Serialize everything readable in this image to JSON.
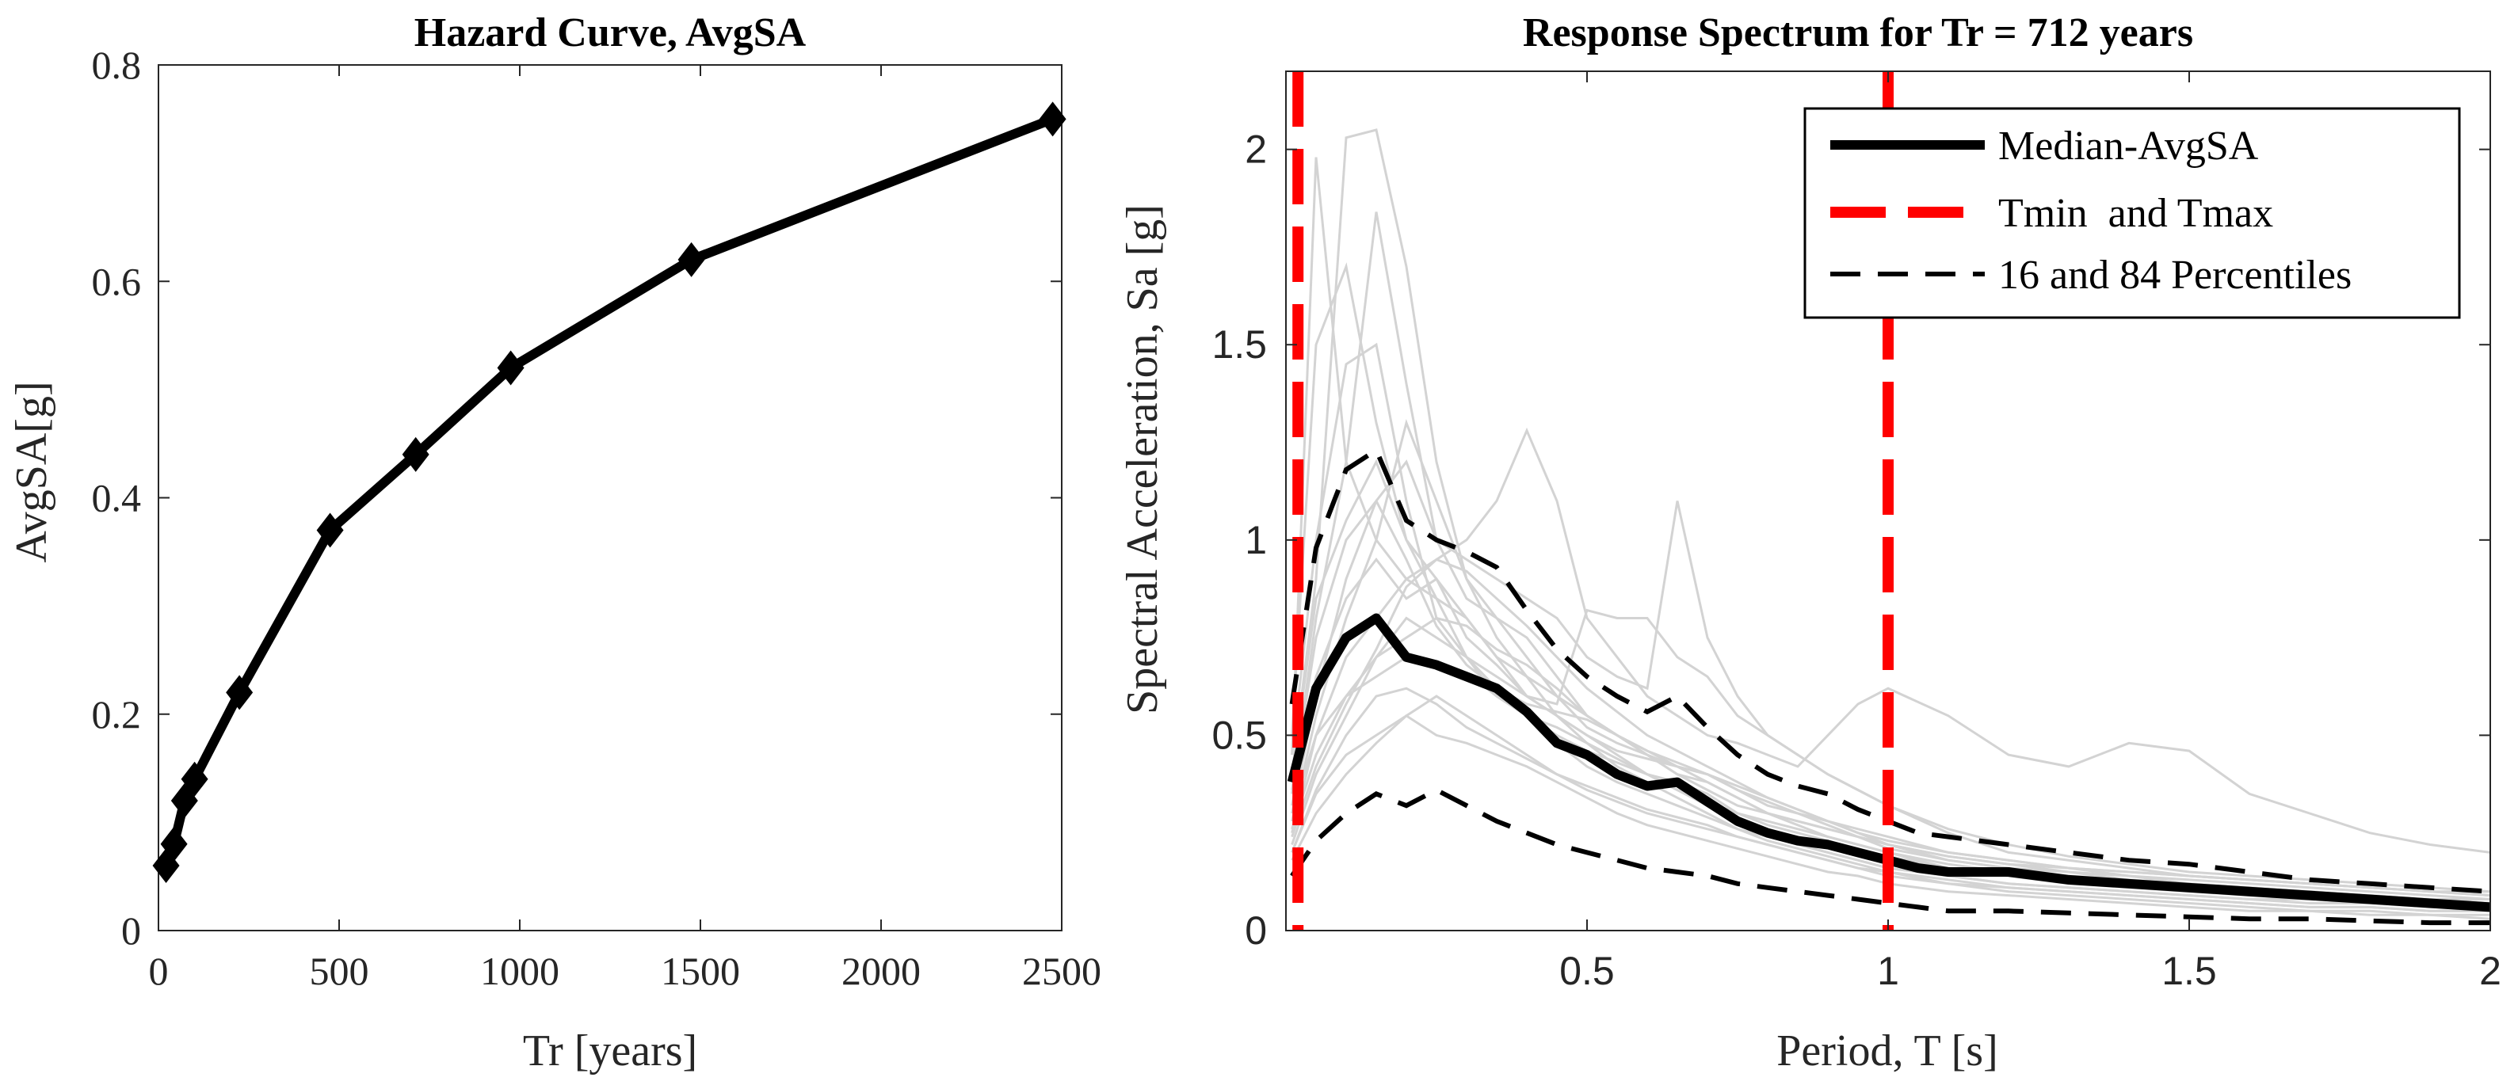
{
  "chart_data": [
    {
      "type": "line",
      "title": "Hazard Curve, AvgSA",
      "xlabel": "Tr [years]",
      "ylabel": "AvgSA[g]",
      "xlim": [
        0,
        2500
      ],
      "ylim": [
        0,
        0.8
      ],
      "xticks": [
        0,
        500,
        1000,
        1500,
        2000,
        2500
      ],
      "yticks": [
        0,
        0.2,
        0.4,
        0.6,
        0.8
      ],
      "xtick_labels": [
        "0",
        "500",
        "1000",
        "1500",
        "2000",
        "2500"
      ],
      "ytick_labels": [
        "0",
        "0.2",
        "0.4",
        "0.6",
        "0.8"
      ],
      "marker": "diamond",
      "color": "#000000",
      "series": [
        {
          "name": "Hazard curve",
          "x": [
            21,
            43,
            72,
            100,
            224,
            475,
            712,
            975,
            1475,
            2475
          ],
          "y": [
            0.06,
            0.08,
            0.12,
            0.14,
            0.22,
            0.37,
            0.44,
            0.52,
            0.62,
            0.75
          ]
        }
      ]
    },
    {
      "type": "line",
      "title": "Response Spectrum for Tr = 712 years",
      "xlabel": "Period, T [s]",
      "ylabel": "Spectral Acceleration, Sa [g]",
      "xlim": [
        0,
        2
      ],
      "ylim": [
        0,
        2.2
      ],
      "xticks": [
        0.5,
        1,
        1.5,
        2
      ],
      "yticks": [
        0,
        0.5,
        1,
        1.5,
        2
      ],
      "xtick_labels": [
        "0.5",
        "1",
        "1.5",
        "2"
      ],
      "ytick_labels": [
        "0",
        "0.5",
        "1",
        "1.5",
        "2"
      ],
      "legend_position": "top-right",
      "legend": [
        "Median-AvgSA",
        "Tmin  and Tmax",
        "16 and 84 Percentiles"
      ],
      "colors": {
        "median": "#000000",
        "limits": "#ff0000",
        "percentiles": "#000000",
        "records": "#d3d3d3"
      },
      "tmin_tmax": [
        0.02,
        1.0
      ],
      "median": {
        "x": [
          0.01,
          0.05,
          0.1,
          0.15,
          0.2,
          0.25,
          0.3,
          0.35,
          0.4,
          0.45,
          0.5,
          0.55,
          0.6,
          0.65,
          0.7,
          0.75,
          0.8,
          0.85,
          0.9,
          0.95,
          1.0,
          1.05,
          1.1,
          1.2,
          1.3,
          1.4,
          1.5,
          1.6,
          1.7,
          1.8,
          1.9,
          2.0
        ],
        "y": [
          0.38,
          0.62,
          0.75,
          0.8,
          0.7,
          0.68,
          0.65,
          0.62,
          0.56,
          0.48,
          0.45,
          0.4,
          0.37,
          0.38,
          0.33,
          0.28,
          0.25,
          0.23,
          0.22,
          0.2,
          0.18,
          0.16,
          0.15,
          0.15,
          0.13,
          0.12,
          0.11,
          0.1,
          0.09,
          0.08,
          0.07,
          0.06
        ]
      },
      "p84": {
        "x": [
          0.01,
          0.05,
          0.1,
          0.15,
          0.2,
          0.25,
          0.3,
          0.35,
          0.4,
          0.45,
          0.5,
          0.55,
          0.6,
          0.65,
          0.7,
          0.75,
          0.8,
          0.85,
          0.9,
          0.95,
          1.0,
          1.05,
          1.1,
          1.2,
          1.3,
          1.4,
          1.5,
          1.6,
          1.7,
          1.8,
          1.9,
          2.0
        ],
        "y": [
          0.58,
          0.98,
          1.18,
          1.23,
          1.05,
          1.0,
          0.97,
          0.93,
          0.82,
          0.72,
          0.65,
          0.6,
          0.56,
          0.6,
          0.52,
          0.45,
          0.4,
          0.37,
          0.35,
          0.31,
          0.28,
          0.25,
          0.24,
          0.22,
          0.2,
          0.18,
          0.17,
          0.15,
          0.13,
          0.12,
          0.11,
          0.1
        ]
      },
      "p16": {
        "x": [
          0.01,
          0.05,
          0.1,
          0.15,
          0.2,
          0.25,
          0.3,
          0.35,
          0.4,
          0.45,
          0.5,
          0.55,
          0.6,
          0.65,
          0.7,
          0.75,
          0.8,
          0.85,
          0.9,
          0.95,
          1.0,
          1.05,
          1.1,
          1.2,
          1.3,
          1.4,
          1.5,
          1.6,
          1.7,
          1.8,
          1.9,
          2.0
        ],
        "y": [
          0.14,
          0.23,
          0.3,
          0.35,
          0.32,
          0.36,
          0.32,
          0.28,
          0.25,
          0.22,
          0.2,
          0.18,
          0.16,
          0.15,
          0.14,
          0.12,
          0.11,
          0.1,
          0.09,
          0.08,
          0.07,
          0.06,
          0.05,
          0.05,
          0.045,
          0.04,
          0.035,
          0.03,
          0.03,
          0.025,
          0.02,
          0.02
        ]
      },
      "record_periods": [
        0.01,
        0.05,
        0.1,
        0.15,
        0.2,
        0.25,
        0.3,
        0.35,
        0.4,
        0.45,
        0.5,
        0.55,
        0.6,
        0.65,
        0.7,
        0.75,
        0.8,
        0.85,
        0.9,
        0.95,
        1.0,
        1.1,
        1.2,
        1.3,
        1.4,
        1.5,
        1.6,
        1.7,
        1.8,
        1.9,
        2.0
      ],
      "records": [
        [
          0.45,
          1.98,
          1.2,
          1.0,
          0.9,
          0.85,
          0.8,
          0.7,
          0.6,
          0.55,
          0.5,
          0.45,
          0.4,
          0.38,
          0.35,
          0.3,
          0.28,
          0.26,
          0.24,
          0.22,
          0.2,
          0.17,
          0.15,
          0.13,
          0.12,
          0.11,
          0.1,
          0.09,
          0.08,
          0.07,
          0.06
        ],
        [
          0.4,
          0.9,
          2.03,
          2.05,
          1.7,
          1.2,
          0.9,
          0.8,
          0.7,
          0.6,
          0.55,
          0.5,
          0.45,
          0.42,
          0.4,
          0.36,
          0.32,
          0.3,
          0.28,
          0.25,
          0.23,
          0.2,
          0.18,
          0.16,
          0.14,
          0.13,
          0.12,
          0.11,
          0.1,
          0.09,
          0.08
        ],
        [
          0.35,
          0.8,
          1.2,
          1.84,
          1.4,
          1.0,
          0.85,
          0.8,
          0.75,
          0.65,
          0.55,
          0.5,
          0.45,
          0.4,
          0.36,
          0.32,
          0.3,
          0.28,
          0.26,
          0.24,
          0.22,
          0.19,
          0.17,
          0.15,
          0.14,
          0.12,
          0.11,
          0.1,
          0.09,
          0.08,
          0.07
        ],
        [
          0.5,
          1.5,
          1.7,
          1.3,
          1.0,
          0.9,
          0.8,
          0.7,
          0.65,
          0.6,
          0.52,
          0.48,
          0.45,
          0.4,
          0.38,
          0.34,
          0.3,
          0.28,
          0.26,
          0.24,
          0.22,
          0.18,
          0.16,
          0.15,
          0.13,
          0.12,
          0.11,
          0.1,
          0.09,
          0.08,
          0.07
        ],
        [
          0.3,
          0.6,
          0.9,
          1.1,
          1.2,
          1.0,
          0.95,
          0.9,
          0.85,
          0.8,
          0.7,
          0.65,
          0.62,
          1.1,
          0.75,
          0.6,
          0.5,
          0.45,
          0.4,
          0.36,
          0.32,
          0.25,
          0.2,
          0.18,
          0.16,
          0.14,
          0.13,
          0.12,
          0.11,
          0.1,
          0.09
        ],
        [
          0.25,
          0.5,
          0.7,
          0.8,
          0.9,
          0.95,
          1.0,
          1.1,
          1.28,
          1.1,
          0.8,
          0.7,
          0.6,
          0.55,
          0.5,
          0.48,
          0.45,
          0.42,
          0.5,
          0.58,
          0.62,
          0.55,
          0.45,
          0.42,
          0.48,
          0.46,
          0.35,
          0.3,
          0.25,
          0.22,
          0.2
        ],
        [
          0.3,
          0.5,
          0.6,
          0.7,
          0.8,
          0.75,
          0.7,
          0.65,
          0.6,
          0.58,
          0.82,
          0.8,
          0.8,
          0.7,
          0.65,
          0.55,
          0.5,
          0.45,
          0.4,
          0.36,
          0.32,
          0.26,
          0.22,
          0.19,
          0.17,
          0.15,
          0.14,
          0.13,
          0.12,
          0.11,
          0.1
        ],
        [
          0.2,
          0.35,
          0.45,
          0.5,
          0.55,
          0.6,
          0.55,
          0.5,
          0.45,
          0.4,
          0.36,
          0.33,
          0.3,
          0.28,
          0.26,
          0.24,
          0.22,
          0.2,
          0.18,
          0.16,
          0.14,
          0.12,
          0.1,
          0.09,
          0.08,
          0.07,
          0.06,
          0.05,
          0.05,
          0.04,
          0.04
        ],
        [
          0.28,
          0.55,
          0.8,
          1.0,
          1.3,
          1.1,
          0.9,
          0.75,
          0.65,
          0.55,
          0.48,
          0.42,
          0.38,
          0.34,
          0.3,
          0.26,
          0.23,
          0.21,
          0.19,
          0.17,
          0.15,
          0.13,
          0.11,
          0.1,
          0.09,
          0.08,
          0.07,
          0.06,
          0.06,
          0.05,
          0.05
        ],
        [
          0.22,
          0.4,
          0.55,
          0.7,
          0.75,
          0.8,
          0.78,
          0.72,
          0.68,
          0.62,
          0.55,
          0.5,
          0.46,
          0.42,
          0.38,
          0.34,
          0.3,
          0.27,
          0.24,
          0.22,
          0.2,
          0.16,
          0.14,
          0.12,
          0.11,
          0.1,
          0.09,
          0.08,
          0.07,
          0.07,
          0.06
        ],
        [
          0.18,
          0.3,
          0.4,
          0.48,
          0.55,
          0.5,
          0.48,
          0.45,
          0.42,
          0.38,
          0.34,
          0.3,
          0.27,
          0.25,
          0.23,
          0.21,
          0.19,
          0.17,
          0.15,
          0.14,
          0.12,
          0.1,
          0.09,
          0.08,
          0.07,
          0.06,
          0.05,
          0.05,
          0.04,
          0.04,
          0.03
        ],
        [
          0.4,
          0.85,
          1.05,
          1.2,
          1.0,
          0.85,
          0.7,
          0.6,
          0.55,
          0.5,
          0.46,
          0.43,
          0.4,
          0.36,
          0.33,
          0.3,
          0.27,
          0.25,
          0.23,
          0.21,
          0.19,
          0.16,
          0.14,
          0.13,
          0.12,
          0.11,
          0.1,
          0.09,
          0.08,
          0.08,
          0.07
        ],
        [
          0.32,
          0.65,
          0.85,
          0.95,
          0.85,
          0.9,
          0.75,
          0.68,
          0.6,
          0.55,
          0.5,
          0.46,
          0.44,
          0.42,
          0.4,
          0.37,
          0.34,
          0.31,
          0.28,
          0.25,
          0.22,
          0.19,
          0.17,
          0.16,
          0.15,
          0.14,
          0.13,
          0.12,
          0.11,
          0.1,
          0.09
        ],
        [
          0.26,
          0.45,
          0.6,
          0.65,
          0.7,
          0.68,
          0.66,
          0.6,
          0.55,
          0.52,
          0.48,
          0.44,
          0.4,
          0.36,
          0.32,
          0.28,
          0.25,
          0.22,
          0.2,
          0.18,
          0.16,
          0.14,
          0.12,
          0.11,
          0.1,
          0.09,
          0.08,
          0.07,
          0.07,
          0.06,
          0.06
        ],
        [
          0.45,
          1.0,
          1.45,
          1.5,
          1.1,
          0.8,
          0.7,
          0.62,
          0.55,
          0.48,
          0.42,
          0.38,
          0.35,
          0.32,
          0.29,
          0.26,
          0.24,
          0.22,
          0.2,
          0.18,
          0.16,
          0.14,
          0.12,
          0.11,
          0.1,
          0.09,
          0.08,
          0.08,
          0.07,
          0.06,
          0.06
        ],
        [
          0.24,
          0.42,
          0.58,
          0.72,
          0.88,
          0.95,
          0.92,
          0.85,
          0.78,
          0.7,
          0.62,
          0.56,
          0.5,
          0.46,
          0.42,
          0.38,
          0.34,
          0.31,
          0.28,
          0.26,
          0.24,
          0.2,
          0.18,
          0.16,
          0.15,
          0.14,
          0.13,
          0.12,
          0.11,
          0.1,
          0.1
        ],
        [
          0.2,
          0.36,
          0.5,
          0.6,
          0.62,
          0.58,
          0.52,
          0.48,
          0.44,
          0.4,
          0.37,
          0.34,
          0.31,
          0.29,
          0.27,
          0.24,
          0.22,
          0.2,
          0.18,
          0.16,
          0.15,
          0.12,
          0.11,
          0.1,
          0.09,
          0.08,
          0.07,
          0.06,
          0.06,
          0.05,
          0.05
        ],
        [
          0.36,
          0.75,
          1.0,
          1.1,
          0.95,
          0.78,
          0.68,
          0.62,
          0.58,
          0.56,
          0.54,
          0.5,
          0.46,
          0.43,
          0.4,
          0.36,
          0.33,
          0.3,
          0.27,
          0.24,
          0.21,
          0.18,
          0.16,
          0.14,
          0.13,
          0.12,
          0.11,
          0.1,
          0.09,
          0.08,
          0.08
        ]
      ]
    }
  ]
}
